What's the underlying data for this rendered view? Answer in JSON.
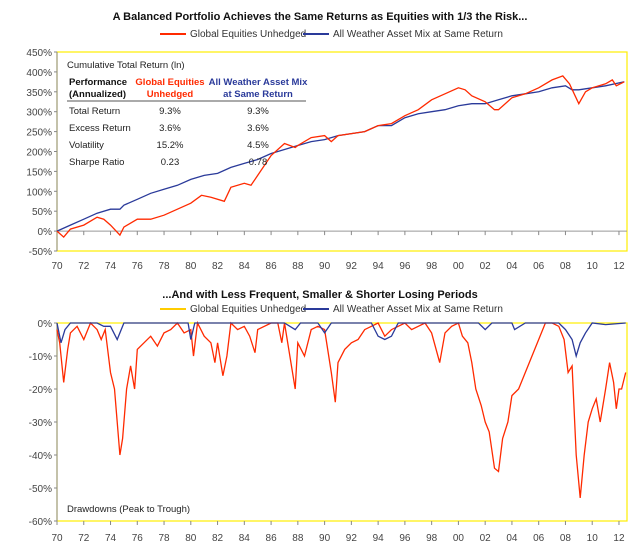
{
  "colors": {
    "equities": "#ff2a00",
    "all_weather": "#2a3a9a",
    "frame": "#ffee00",
    "equities_highlight": "#ffcc00"
  },
  "chart_data": [
    {
      "type": "line",
      "title": "A Balanced Portfolio Achieves the Same Returns as Equities with 1/3 the Risk...",
      "annotation": "Cumulative Total Return (ln)",
      "ylim": [
        -50,
        450
      ],
      "yticks": [
        "450%",
        "400%",
        "350%",
        "300%",
        "250%",
        "200%",
        "150%",
        "100%",
        "50%",
        "0%",
        "-50%"
      ],
      "xlim": [
        1970,
        2012.6
      ],
      "xticks": [
        "70",
        "72",
        "74",
        "76",
        "78",
        "80",
        "82",
        "84",
        "86",
        "88",
        "90",
        "92",
        "94",
        "96",
        "98",
        "00",
        "02",
        "04",
        "06",
        "08",
        "10",
        "12"
      ],
      "legend_placement": "top",
      "series": [
        {
          "name": "Global Equities Unhedged",
          "x": [
            1970,
            1970.5,
            1971,
            1972,
            1973,
            1973.5,
            1974,
            1974.7,
            1975,
            1976,
            1977,
            1978,
            1979,
            1980,
            1980.8,
            1981.5,
            1982.5,
            1983,
            1984,
            1984.5,
            1985,
            1986,
            1987,
            1987.8,
            1988,
            1989,
            1990,
            1990.5,
            1991,
            1992,
            1993,
            1994,
            1995,
            1996,
            1997,
            1998,
            1999,
            2000,
            2000.5,
            2001,
            2002,
            2002.7,
            2003,
            2004,
            2005,
            2006,
            2007,
            2007.8,
            2008.3,
            2009,
            2009.5,
            2010,
            2011,
            2011.5,
            2011.8,
            2012.4
          ],
          "values": [
            0,
            -15,
            5,
            15,
            35,
            30,
            15,
            -10,
            10,
            30,
            30,
            40,
            55,
            70,
            90,
            85,
            75,
            110,
            120,
            115,
            140,
            190,
            220,
            210,
            215,
            235,
            240,
            225,
            240,
            245,
            250,
            265,
            270,
            290,
            305,
            330,
            345,
            360,
            355,
            340,
            325,
            305,
            305,
            335,
            345,
            360,
            380,
            390,
            370,
            320,
            350,
            360,
            370,
            380,
            365,
            375
          ]
        },
        {
          "name": "All Weather Asset Mix at Same Return",
          "x": [
            1970,
            1971,
            1972,
            1973,
            1974,
            1974.7,
            1975,
            1976,
            1977,
            1978,
            1979,
            1980,
            1981,
            1982,
            1983,
            1984,
            1985,
            1986,
            1987,
            1988,
            1989,
            1990,
            1991,
            1992,
            1993,
            1994,
            1995,
            1996,
            1997,
            1998,
            1999,
            2000,
            2001,
            2002,
            2003,
            2004,
            2005,
            2006,
            2007,
            2008,
            2008.5,
            2009,
            2010,
            2011,
            2012.4
          ],
          "values": [
            0,
            15,
            30,
            45,
            55,
            55,
            65,
            80,
            95,
            105,
            115,
            130,
            140,
            145,
            160,
            170,
            180,
            195,
            205,
            215,
            225,
            230,
            240,
            245,
            250,
            265,
            265,
            285,
            295,
            300,
            305,
            315,
            320,
            320,
            330,
            340,
            345,
            350,
            360,
            365,
            355,
            355,
            360,
            365,
            375
          ]
        }
      ],
      "table": {
        "headers": [
          "Performance (Annualized)",
          "Global Equities Unhedged",
          "All Weather Asset Mix at Same Return"
        ],
        "rows": [
          [
            "Total Return",
            "9.3%",
            "9.3%"
          ],
          [
            "Excess Return",
            "3.6%",
            "3.6%"
          ],
          [
            "Volatility",
            "15.2%",
            "4.5%"
          ],
          [
            "Sharpe Ratio",
            "0.23",
            "0.78"
          ]
        ]
      }
    },
    {
      "type": "line",
      "title": "...And with Less Frequent, Smaller & Shorter Losing Periods",
      "annotation": "Drawdowns (Peak to Trough)",
      "ylim": [
        -60,
        0
      ],
      "yticks": [
        "0%",
        "-10%",
        "-20%",
        "-30%",
        "-40%",
        "-50%",
        "-60%"
      ],
      "xlim": [
        1970,
        2012.6
      ],
      "xticks": [
        "70",
        "72",
        "74",
        "76",
        "78",
        "80",
        "82",
        "84",
        "86",
        "88",
        "90",
        "92",
        "94",
        "96",
        "98",
        "00",
        "02",
        "04",
        "06",
        "08",
        "10",
        "12"
      ],
      "legend_placement": "top",
      "series": [
        {
          "name": "Global Equities Unhedged",
          "x": [
            1970,
            1970.2,
            1970.5,
            1970.8,
            1971,
            1971.5,
            1972,
            1972.5,
            1973,
            1973.3,
            1973.6,
            1974,
            1974.3,
            1974.7,
            1974.9,
            1975.2,
            1975.5,
            1975.8,
            1976,
            1976.5,
            1977,
            1977.5,
            1978,
            1978.5,
            1979,
            1979.5,
            1980,
            1980.2,
            1980.5,
            1981,
            1981.5,
            1981.8,
            1982,
            1982.4,
            1982.7,
            1983,
            1983.5,
            1984,
            1984.4,
            1984.8,
            1985,
            1986,
            1986.5,
            1986.8,
            1987,
            1987.8,
            1988,
            1988.5,
            1989,
            1989.5,
            1990,
            1990.5,
            1990.8,
            1991,
            1991.5,
            1992,
            1992.5,
            1993,
            1993.5,
            1994,
            1994.5,
            1995,
            1995.5,
            1996,
            1996.5,
            1997,
            1997.5,
            1998,
            1998.6,
            1999,
            1999.5,
            2000,
            2000.3,
            2000.7,
            2001,
            2001.3,
            2001.7,
            2002,
            2002.3,
            2002.7,
            2003,
            2003.3,
            2003.7,
            2004,
            2004.5,
            2005,
            2005.5,
            2006,
            2006.5,
            2007,
            2007.5,
            2007.9,
            2008.2,
            2008.5,
            2008.8,
            2009.1,
            2009.4,
            2009.7,
            2010,
            2010.3,
            2010.6,
            2011,
            2011.3,
            2011.6,
            2011.8,
            2012,
            2012.2,
            2012.5
          ],
          "values": [
            -2,
            -6,
            -18,
            -8,
            -3,
            -1,
            -5,
            0,
            -2,
            -5,
            -2,
            -15,
            -20,
            -40,
            -35,
            -20,
            -13,
            -20,
            -8,
            -6,
            -4,
            -7,
            -3,
            -2,
            0,
            -3,
            -2,
            -10,
            0,
            -4,
            -6,
            -12,
            -6,
            -16,
            -10,
            0,
            -2,
            -1,
            -4,
            -9,
            -2,
            0,
            0,
            -6,
            0,
            -20,
            -6,
            -10,
            -2,
            -1,
            -2,
            -15,
            -24,
            -12,
            -8,
            -6,
            -5,
            -2,
            -1,
            0,
            -4,
            -2,
            -1,
            0,
            -2,
            -1,
            0,
            -3,
            -12,
            -3,
            -1,
            0,
            -4,
            -6,
            -12,
            -20,
            -25,
            -30,
            -33,
            -44,
            -45,
            -35,
            -30,
            -22,
            -20,
            -15,
            -10,
            -5,
            0,
            0,
            -1,
            -5,
            -15,
            -13,
            -40,
            -53,
            -40,
            -30,
            -26,
            -23,
            -30,
            -20,
            -12,
            -18,
            -26,
            -20,
            -20,
            -15
          ]
        },
        {
          "name": "All Weather Asset Mix at Same Return",
          "x": [
            1970,
            1970.3,
            1970.6,
            1971,
            1973,
            1973.5,
            1974,
            1974.5,
            1975,
            1978,
            1979.8,
            1980,
            1980.3,
            1982,
            1987,
            1987.8,
            1988.2,
            1989.5,
            1990,
            1990.5,
            1993.5,
            1994,
            1994.5,
            1995,
            1995.5,
            2001.5,
            2002,
            2002.5,
            2004,
            2004.2,
            2005,
            2006,
            2007.5,
            2008,
            2008.5,
            2008.8,
            2009.1,
            2009.5,
            2010,
            2011,
            2012.5
          ],
          "values": [
            0,
            -6,
            -2,
            0,
            0,
            -1,
            -1,
            -5,
            0,
            0,
            0,
            -5,
            0,
            0,
            0,
            -2,
            0,
            0,
            -3,
            0,
            0,
            -4,
            -5,
            -4,
            0,
            0,
            -2,
            0,
            0,
            -2,
            0,
            0,
            0,
            -2,
            -5,
            -10,
            -6,
            -3,
            0,
            -0.5,
            0
          ]
        }
      ]
    }
  ]
}
